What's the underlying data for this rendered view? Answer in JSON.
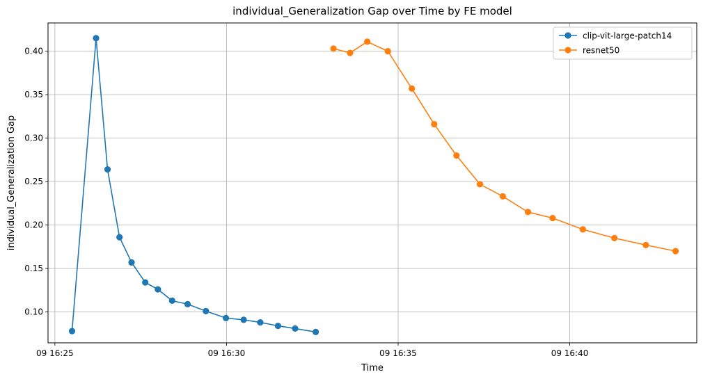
{
  "chart_data": {
    "type": "line",
    "title": "individual_Generalization Gap over Time by FE model",
    "xlabel": "Time",
    "ylabel": "individual_Generalization Gap",
    "x_ticks": [
      "09 16:25",
      "09 16:30",
      "09 16:35",
      "09 16:40"
    ],
    "y_ticks": [
      "0.10",
      "0.15",
      "0.20",
      "0.25",
      "0.30",
      "0.35",
      "0.40"
    ],
    "xlim": [
      "16:24:48",
      "16:43:42"
    ],
    "ylim": [
      0.0645,
      0.4325
    ],
    "grid": true,
    "legend_position": "top-right",
    "series": [
      {
        "name": "clip-vit-large-patch14",
        "color": "#1f77b4",
        "x": [
          "16:25:30",
          "16:26:12",
          "16:26:32",
          "16:26:53",
          "16:27:14",
          "16:27:38",
          "16:28:00",
          "16:28:25",
          "16:28:52",
          "16:29:24",
          "16:29:59",
          "16:30:30",
          "16:30:59",
          "16:31:30",
          "16:32:00",
          "16:32:36"
        ],
        "y": [
          0.078,
          0.415,
          0.264,
          0.186,
          0.157,
          0.134,
          0.126,
          0.113,
          0.109,
          0.101,
          0.093,
          0.091,
          0.088,
          0.084,
          0.081,
          0.077
        ]
      },
      {
        "name": "resnet50",
        "color": "#ff7f0e",
        "x": [
          "16:33:07",
          "16:33:36",
          "16:34:06",
          "16:34:42",
          "16:35:24",
          "16:36:03",
          "16:36:42",
          "16:37:23",
          "16:38:03",
          "16:38:47",
          "16:39:30",
          "16:40:23",
          "16:41:18",
          "16:42:13",
          "16:43:05"
        ],
        "y": [
          0.403,
          0.398,
          0.411,
          0.4,
          0.357,
          0.316,
          0.28,
          0.247,
          0.233,
          0.215,
          0.208,
          0.195,
          0.185,
          0.177,
          0.17
        ]
      }
    ]
  }
}
